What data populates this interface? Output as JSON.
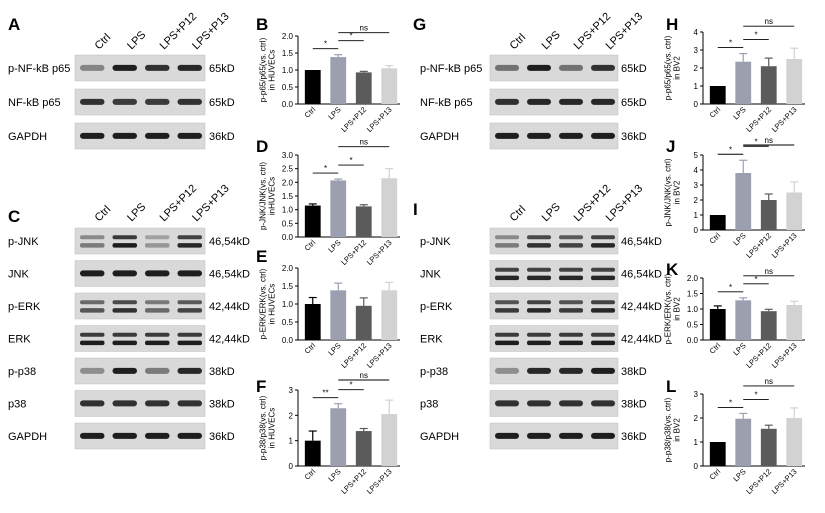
{
  "panel_letters": [
    "A",
    "B",
    "C",
    "D",
    "E",
    "F",
    "G",
    "H",
    "I",
    "J",
    "K",
    "L"
  ],
  "colors": {
    "ctrl": "#000000",
    "lps": "#9b9fb0",
    "p12": "#5b5b5b",
    "p13": "#d2d2d2",
    "band": "#1e1e1e",
    "blot_bg": "#d9d9d9"
  },
  "lane_labels": [
    "Ctrl",
    "LPS",
    "LPS+P12",
    "LPS+P13"
  ],
  "blots": {
    "A": {
      "rows": [
        {
          "label": "p-NF-kB p65",
          "kd": "65kD"
        },
        {
          "label": "NF-kB p65",
          "kd": "65kD"
        },
        {
          "label": "GAPDH",
          "kd": "36kD"
        }
      ]
    },
    "C": {
      "rows": [
        {
          "label": "p-JNK",
          "kd": "46,54kD"
        },
        {
          "label": "JNK",
          "kd": "46,54kD"
        },
        {
          "label": "p-ERK",
          "kd": "42,44kD"
        },
        {
          "label": "ERK",
          "kd": "42,44kD"
        },
        {
          "label": "p-p38",
          "kd": "38kD"
        },
        {
          "label": "p38",
          "kd": "38kD"
        },
        {
          "label": "GAPDH",
          "kd": "36kD"
        }
      ]
    },
    "G": {
      "rows": [
        {
          "label": "p-NF-kB p65",
          "kd": "65kD"
        },
        {
          "label": "NF-kB p65",
          "kd": "65kD"
        },
        {
          "label": "GAPDH",
          "kd": "36kD"
        }
      ]
    },
    "I": {
      "rows": [
        {
          "label": "p-JNK",
          "kd": "46,54kD"
        },
        {
          "label": "JNK",
          "kd": "46,54kD"
        },
        {
          "label": "p-ERK",
          "kd": "42,44kD"
        },
        {
          "label": "ERK",
          "kd": "42,44kD"
        },
        {
          "label": "p-p38",
          "kd": "38kD"
        },
        {
          "label": "p38",
          "kd": "38kD"
        },
        {
          "label": "GAPDH",
          "kd": "36kD"
        }
      ]
    }
  },
  "chart_data": [
    {
      "panel": "B",
      "type": "bar",
      "categories": [
        "Ctrl",
        "LPS",
        "LPS+P12",
        "LPS+P13"
      ],
      "values": [
        1.0,
        1.38,
        0.93,
        1.05
      ],
      "errors": [
        0,
        0.07,
        0.03,
        0.08
      ],
      "ylabel": "p-p65/p65(vs. ctrl)\nin HUVECs",
      "ylim": [
        0,
        2.0
      ],
      "yticks": [
        "0.0",
        "0.5",
        "1.0",
        "1.5",
        "2.0"
      ],
      "signif": [
        {
          "from": 0,
          "to": 1,
          "text": "*"
        },
        {
          "from": 1,
          "to": 2,
          "text": "*"
        },
        {
          "from": 1,
          "to": 3,
          "text": "ns"
        }
      ]
    },
    {
      "panel": "D",
      "type": "bar",
      "categories": [
        "Ctrl",
        "LPS",
        "LPS+P12",
        "LPS+P13"
      ],
      "values": [
        1.15,
        2.07,
        1.12,
        2.15
      ],
      "errors": [
        0.06,
        0.05,
        0.06,
        0.35
      ],
      "ylabel": "p-JNK/JNK(vs. ctrl)\ninHUVECs",
      "ylim": [
        0,
        3.0
      ],
      "yticks": [
        "0.0",
        "0.5",
        "1.0",
        "1.5",
        "2.0",
        "2.5",
        "3.0"
      ],
      "signif": [
        {
          "from": 0,
          "to": 1,
          "text": "*"
        },
        {
          "from": 1,
          "to": 2,
          "text": "*"
        },
        {
          "from": 1,
          "to": 3,
          "text": "ns"
        }
      ]
    },
    {
      "panel": "E",
      "type": "bar",
      "categories": [
        "Ctrl",
        "LPS",
        "LPS+P12",
        "LPS+P13"
      ],
      "values": [
        1.0,
        1.38,
        0.95,
        1.38
      ],
      "errors": [
        0.18,
        0.2,
        0.22,
        0.22
      ],
      "ylabel": "p-ERK/ERK(vs. ctrl)\nin HUVECs",
      "ylim": [
        0,
        2.0
      ],
      "yticks": [
        "0.0",
        "0.5",
        "1.0",
        "1.5",
        "2.0"
      ],
      "signif": []
    },
    {
      "panel": "F",
      "type": "bar",
      "categories": [
        "Ctrl",
        "LPS",
        "LPS+P12",
        "LPS+P13"
      ],
      "values": [
        1.0,
        2.28,
        1.38,
        2.05
      ],
      "errors": [
        0.38,
        0.18,
        0.1,
        0.55
      ],
      "ylabel": "p-p38/p38(vs. ctrl)\nin HUVECs",
      "ylim": [
        0,
        3.0
      ],
      "yticks": [
        "0",
        "1",
        "2",
        "3"
      ],
      "signif": [
        {
          "from": 0,
          "to": 1,
          "text": "**"
        },
        {
          "from": 1,
          "to": 2,
          "text": "*"
        },
        {
          "from": 1,
          "to": 3,
          "text": "ns"
        }
      ]
    },
    {
      "panel": "H",
      "type": "bar",
      "categories": [
        "Ctrl",
        "LPS",
        "LPS+P12",
        "LPS+P13"
      ],
      "values": [
        1.0,
        2.35,
        2.1,
        2.5
      ],
      "errors": [
        0,
        0.45,
        0.45,
        0.6
      ],
      "ylabel": "p-p65/p65(vs. ctrl)\nin BV2",
      "ylim": [
        0,
        4.0
      ],
      "yticks": [
        "0",
        "1",
        "2",
        "3",
        "4"
      ],
      "signif": [
        {
          "from": 0,
          "to": 1,
          "text": "*"
        },
        {
          "from": 1,
          "to": 2,
          "text": "*"
        },
        {
          "from": 1,
          "to": 3,
          "text": "ns"
        }
      ]
    },
    {
      "panel": "J",
      "type": "bar",
      "categories": [
        "Ctrl",
        "LPS",
        "LPS+P12",
        "LPS+P13"
      ],
      "values": [
        1.0,
        3.8,
        2.0,
        2.5
      ],
      "errors": [
        0,
        0.85,
        0.4,
        0.7
      ],
      "ylabel": "p-JNK/JNK(vs. ctrl)\nin BV2",
      "ylim": [
        0,
        5.0
      ],
      "yticks": [
        "0",
        "1",
        "2",
        "3",
        "4",
        "5"
      ],
      "signif": [
        {
          "from": 0,
          "to": 1,
          "text": "*"
        },
        {
          "from": 1,
          "to": 2,
          "text": "*"
        },
        {
          "from": 1,
          "to": 3,
          "text": "ns"
        }
      ]
    },
    {
      "panel": "K",
      "type": "bar",
      "categories": [
        "Ctrl",
        "LPS",
        "LPS+P12",
        "LPS+P13"
      ],
      "values": [
        1.0,
        1.28,
        0.93,
        1.13
      ],
      "errors": [
        0.1,
        0.08,
        0.06,
        0.12
      ],
      "ylabel": "p-ERK/ERK(vs. ctrl)\nin BV2",
      "ylim": [
        0,
        2.0
      ],
      "yticks": [
        "0.0",
        "0.5",
        "1.0",
        "1.5",
        "2.0"
      ],
      "signif": [
        {
          "from": 0,
          "to": 1,
          "text": "*"
        },
        {
          "from": 1,
          "to": 2,
          "text": "*"
        },
        {
          "from": 1,
          "to": 3,
          "text": "ns"
        }
      ]
    },
    {
      "panel": "L",
      "type": "bar",
      "categories": [
        "Ctrl",
        "LPS",
        "LPS+P12",
        "LPS+P13"
      ],
      "values": [
        1.0,
        1.97,
        1.55,
        2.0
      ],
      "errors": [
        0,
        0.22,
        0.15,
        0.42
      ],
      "ylabel": "p-p38/p38(vs. ctrl)\nin BV2",
      "ylim": [
        0,
        3.0
      ],
      "yticks": [
        "0",
        "1",
        "2",
        "3"
      ],
      "signif": [
        {
          "from": 0,
          "to": 1,
          "text": "*"
        },
        {
          "from": 1,
          "to": 2,
          "text": "*"
        },
        {
          "from": 1,
          "to": 3,
          "text": "ns"
        }
      ]
    }
  ]
}
